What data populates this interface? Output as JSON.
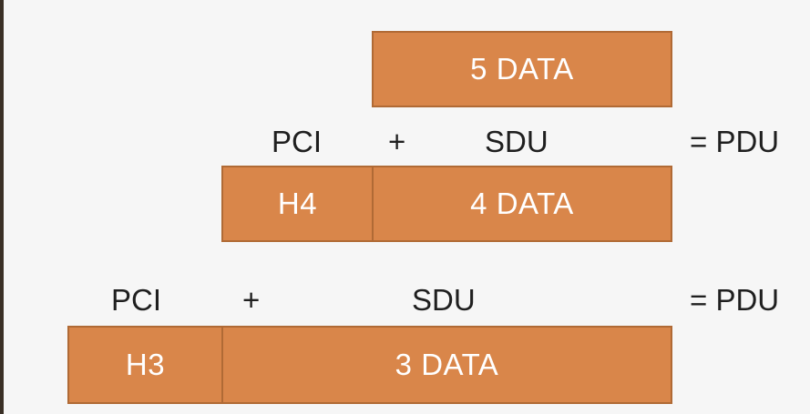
{
  "layer5": {
    "data": "5 DATA"
  },
  "layer4": {
    "pci": "PCI",
    "plus": "+",
    "sdu": "SDU",
    "equals_pdu": "= PDU",
    "header": "H4",
    "data": "4 DATA"
  },
  "layer3": {
    "pci": "PCI",
    "plus": "+",
    "sdu": "SDU",
    "equals_pdu": "= PDU",
    "header": "H3",
    "data": "3 DATA"
  },
  "colors": {
    "block_fill": "#d9864a",
    "block_border": "#b06a35",
    "block_text": "#ffffff",
    "label_text": "#1f1f1f",
    "background": "#f6f6f6"
  }
}
